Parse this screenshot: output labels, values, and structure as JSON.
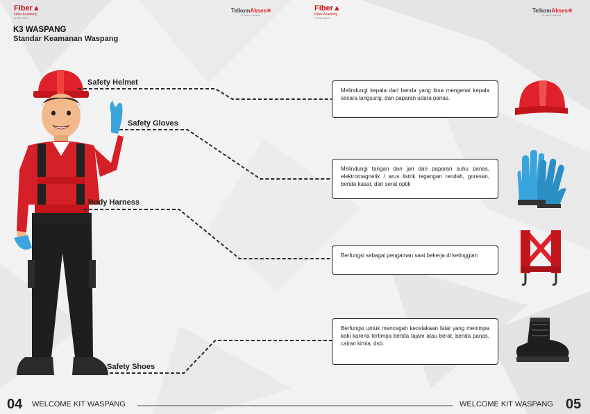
{
  "header": {
    "fiber_logo_left": {
      "word": "Fiber",
      "sub": "Fiber Academy",
      "tiny": "by TelkomAkses"
    },
    "telkom_logo_left": {
      "prefix": "Telkom",
      "accent": "Akses",
      "tiny": "by Telkom Indonesia"
    },
    "fiber_logo_right": {
      "word": "Fiber",
      "sub": "Fiber Academy",
      "tiny": "by TelkomAkses"
    },
    "telkom_logo_right": {
      "prefix": "Telkom",
      "accent": "Akses",
      "tiny": "by Telkom Indonesia"
    }
  },
  "page": {
    "title": "K3 WASPANG",
    "subtitle": "Standar Keamanan Waspang"
  },
  "items": [
    {
      "label": "Safety Helmet",
      "description": "Melindungi kepala dari benda yang bisa mengenai kepala secara langsung, dan paparan udara panas.",
      "icon": "helmet-icon"
    },
    {
      "label": "Safety Gloves",
      "description": "Melindungi tangan dan jari dari paparan suhu panas, elektromagnetik / arus listrik tegangan rendah, goresan, benda kasar, dan serat optik",
      "icon": "gloves-icon"
    },
    {
      "label": "Body Harness",
      "description": "Berfungsi sebagai pengaman saat bekerja di ketinggian",
      "icon": "harness-icon"
    },
    {
      "label": "Safety Shoes",
      "description": "Berfungsi untuk mencegah kecelakaan fatal yang menimpa kaki karena tertimpa benda tajam atau berat, benda panas, cairan kimia, dsb.",
      "icon": "shoe-icon"
    }
  ],
  "footer": {
    "left_page": "04",
    "left_text": "WELCOME KIT WASPANG",
    "right_text": "WELCOME KIT WASPANG",
    "right_page": "05"
  },
  "colors": {
    "accent_red": "#e0202a",
    "dark": "#222222"
  }
}
